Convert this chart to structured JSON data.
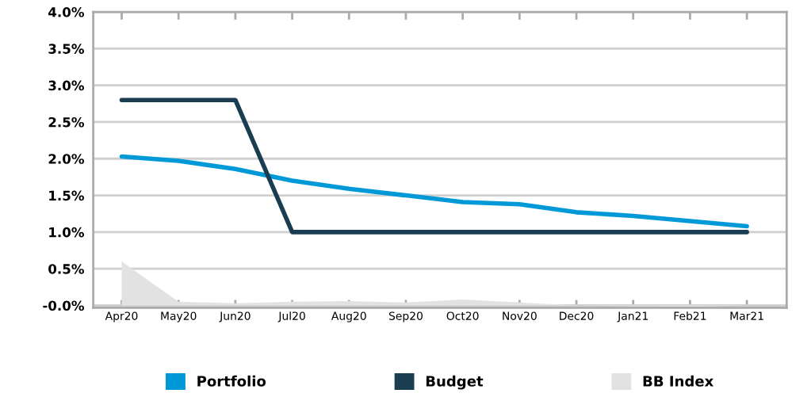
{
  "chart_data": {
    "type": "line",
    "categories": [
      "Apr20",
      "May20",
      "Jun20",
      "Jul20",
      "Aug20",
      "Sep20",
      "Oct20",
      "Nov20",
      "Dec20",
      "Jan21",
      "Feb21",
      "Mar21"
    ],
    "series": [
      {
        "name": "Portfolio",
        "color": "#0099d8",
        "values": [
          2.03,
          1.97,
          1.86,
          1.7,
          1.59,
          1.5,
          1.41,
          1.38,
          1.27,
          1.22,
          1.15,
          1.08
        ]
      },
      {
        "name": "Budget",
        "color": "#1a3d52",
        "values": [
          2.8,
          2.8,
          2.8,
          1.0,
          1.0,
          1.0,
          1.0,
          1.0,
          1.0,
          1.0,
          1.0,
          1.0
        ]
      },
      {
        "name": "BB Index",
        "type": "area",
        "color": "#e2e2e2",
        "values": [
          0.6,
          0.05,
          0.03,
          0.05,
          0.06,
          0.04,
          0.08,
          0.04,
          0.0,
          -0.01,
          -0.02,
          0.0
        ]
      }
    ],
    "ylim": [
      -0.03,
      4.0
    ],
    "yticks": [
      {
        "value": 0,
        "label": "-0.0%"
      },
      {
        "value": 0.5,
        "label": "0.5%"
      },
      {
        "value": 1.0,
        "label": "1.0%"
      },
      {
        "value": 1.5,
        "label": "1.5%"
      },
      {
        "value": 2.0,
        "label": "2.0%"
      },
      {
        "value": 2.5,
        "label": "2.5%"
      },
      {
        "value": 3.0,
        "label": "3.0%"
      },
      {
        "value": 3.5,
        "label": "3.5%"
      },
      {
        "value": 4.0,
        "label": "4.0%"
      }
    ],
    "grid": "y",
    "legend": "bottom"
  }
}
